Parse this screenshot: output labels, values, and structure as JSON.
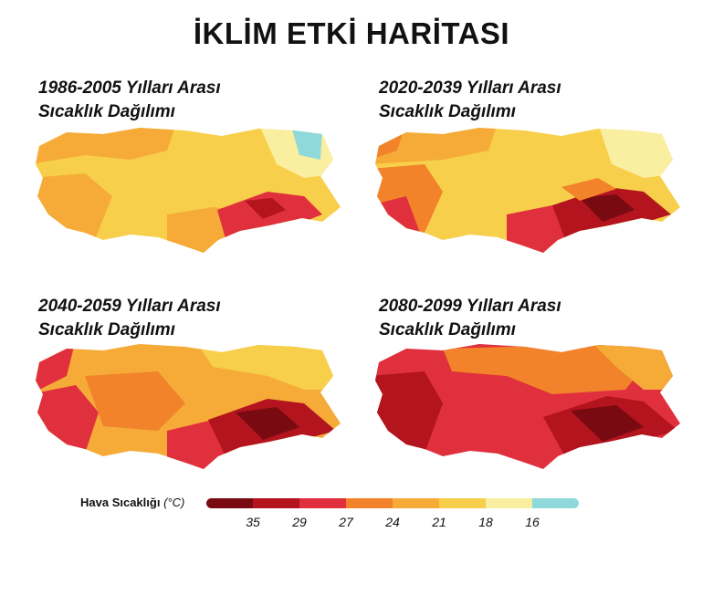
{
  "title": "İKLİM ETKİ HARİTASI",
  "panels": [
    {
      "period": "1986-2005 Yılları Arası",
      "subtitle": "Sıcaklık Dağılımı"
    },
    {
      "period": "2020-2039 Yılları Arası",
      "subtitle": "Sıcaklık Dağılımı"
    },
    {
      "period": "2040-2059 Yılları Arası",
      "subtitle": "Sıcaklık Dağılımı"
    },
    {
      "period": "2080-2099 Yılları Arası",
      "subtitle": "Sıcaklık Dağılımı"
    }
  ],
  "legend": {
    "label": "Hava Sıcaklığı",
    "unit": "(°C)",
    "colors": [
      "#7a0a12",
      "#b3141e",
      "#e0303d",
      "#f2832a",
      "#f6ab38",
      "#f7cf4a",
      "#faeea0",
      "#8fd9da"
    ],
    "ticks": [
      "35",
      "29",
      "27",
      "24",
      "21",
      "18",
      "16"
    ]
  },
  "colors": {
    "very_hot": "#7a0a12",
    "hot": "#b3141e",
    "warm_red": "#e0303d",
    "orange": "#f2832a",
    "light_orange": "#f6ab38",
    "yellow": "#f7cf4a",
    "pale_yellow": "#faeea0",
    "cool": "#8fd9da"
  }
}
